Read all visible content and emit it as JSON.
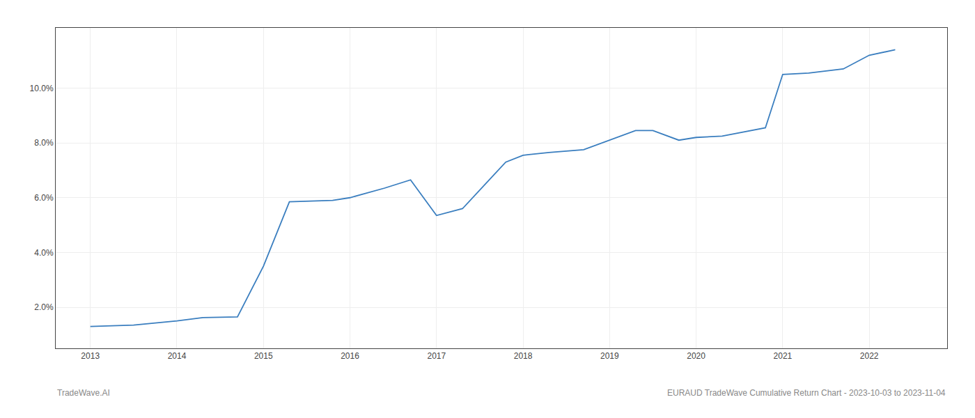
{
  "chart_data": {
    "type": "line",
    "x": [
      2013.0,
      2013.5,
      2014.0,
      2014.3,
      2014.7,
      2015.0,
      2015.3,
      2015.8,
      2016.0,
      2016.4,
      2016.7,
      2017.0,
      2017.3,
      2017.8,
      2018.0,
      2018.3,
      2018.7,
      2019.0,
      2019.3,
      2019.5,
      2019.8,
      2020.0,
      2020.3,
      2020.8,
      2021.0,
      2021.3,
      2021.7,
      2022.0,
      2022.3
    ],
    "values": [
      1.3,
      1.35,
      1.5,
      1.62,
      1.65,
      3.5,
      5.85,
      5.9,
      6.0,
      6.35,
      6.65,
      5.35,
      5.6,
      7.3,
      7.55,
      7.65,
      7.75,
      8.1,
      8.45,
      8.45,
      8.1,
      8.2,
      8.25,
      8.55,
      10.5,
      10.55,
      10.7,
      11.2,
      11.4
    ],
    "color": "#3a7ebf",
    "xlim": [
      2012.6,
      2022.9
    ],
    "ylim": [
      0.5,
      12.2
    ],
    "xticks": [
      2013,
      2014,
      2015,
      2016,
      2017,
      2018,
      2019,
      2020,
      2021,
      2022
    ],
    "yticks": [
      {
        "value": 2.0,
        "label": "2.0%"
      },
      {
        "value": 4.0,
        "label": "4.0%"
      },
      {
        "value": 6.0,
        "label": "6.0%"
      },
      {
        "value": 8.0,
        "label": "8.0%"
      },
      {
        "value": 10.0,
        "label": "10.0%"
      }
    ],
    "grid": true,
    "annotations": [
      "TradeWave.AI",
      "EURAUD TradeWave Cumulative Return Chart - 2023-10-03 to 2023-11-04"
    ]
  }
}
